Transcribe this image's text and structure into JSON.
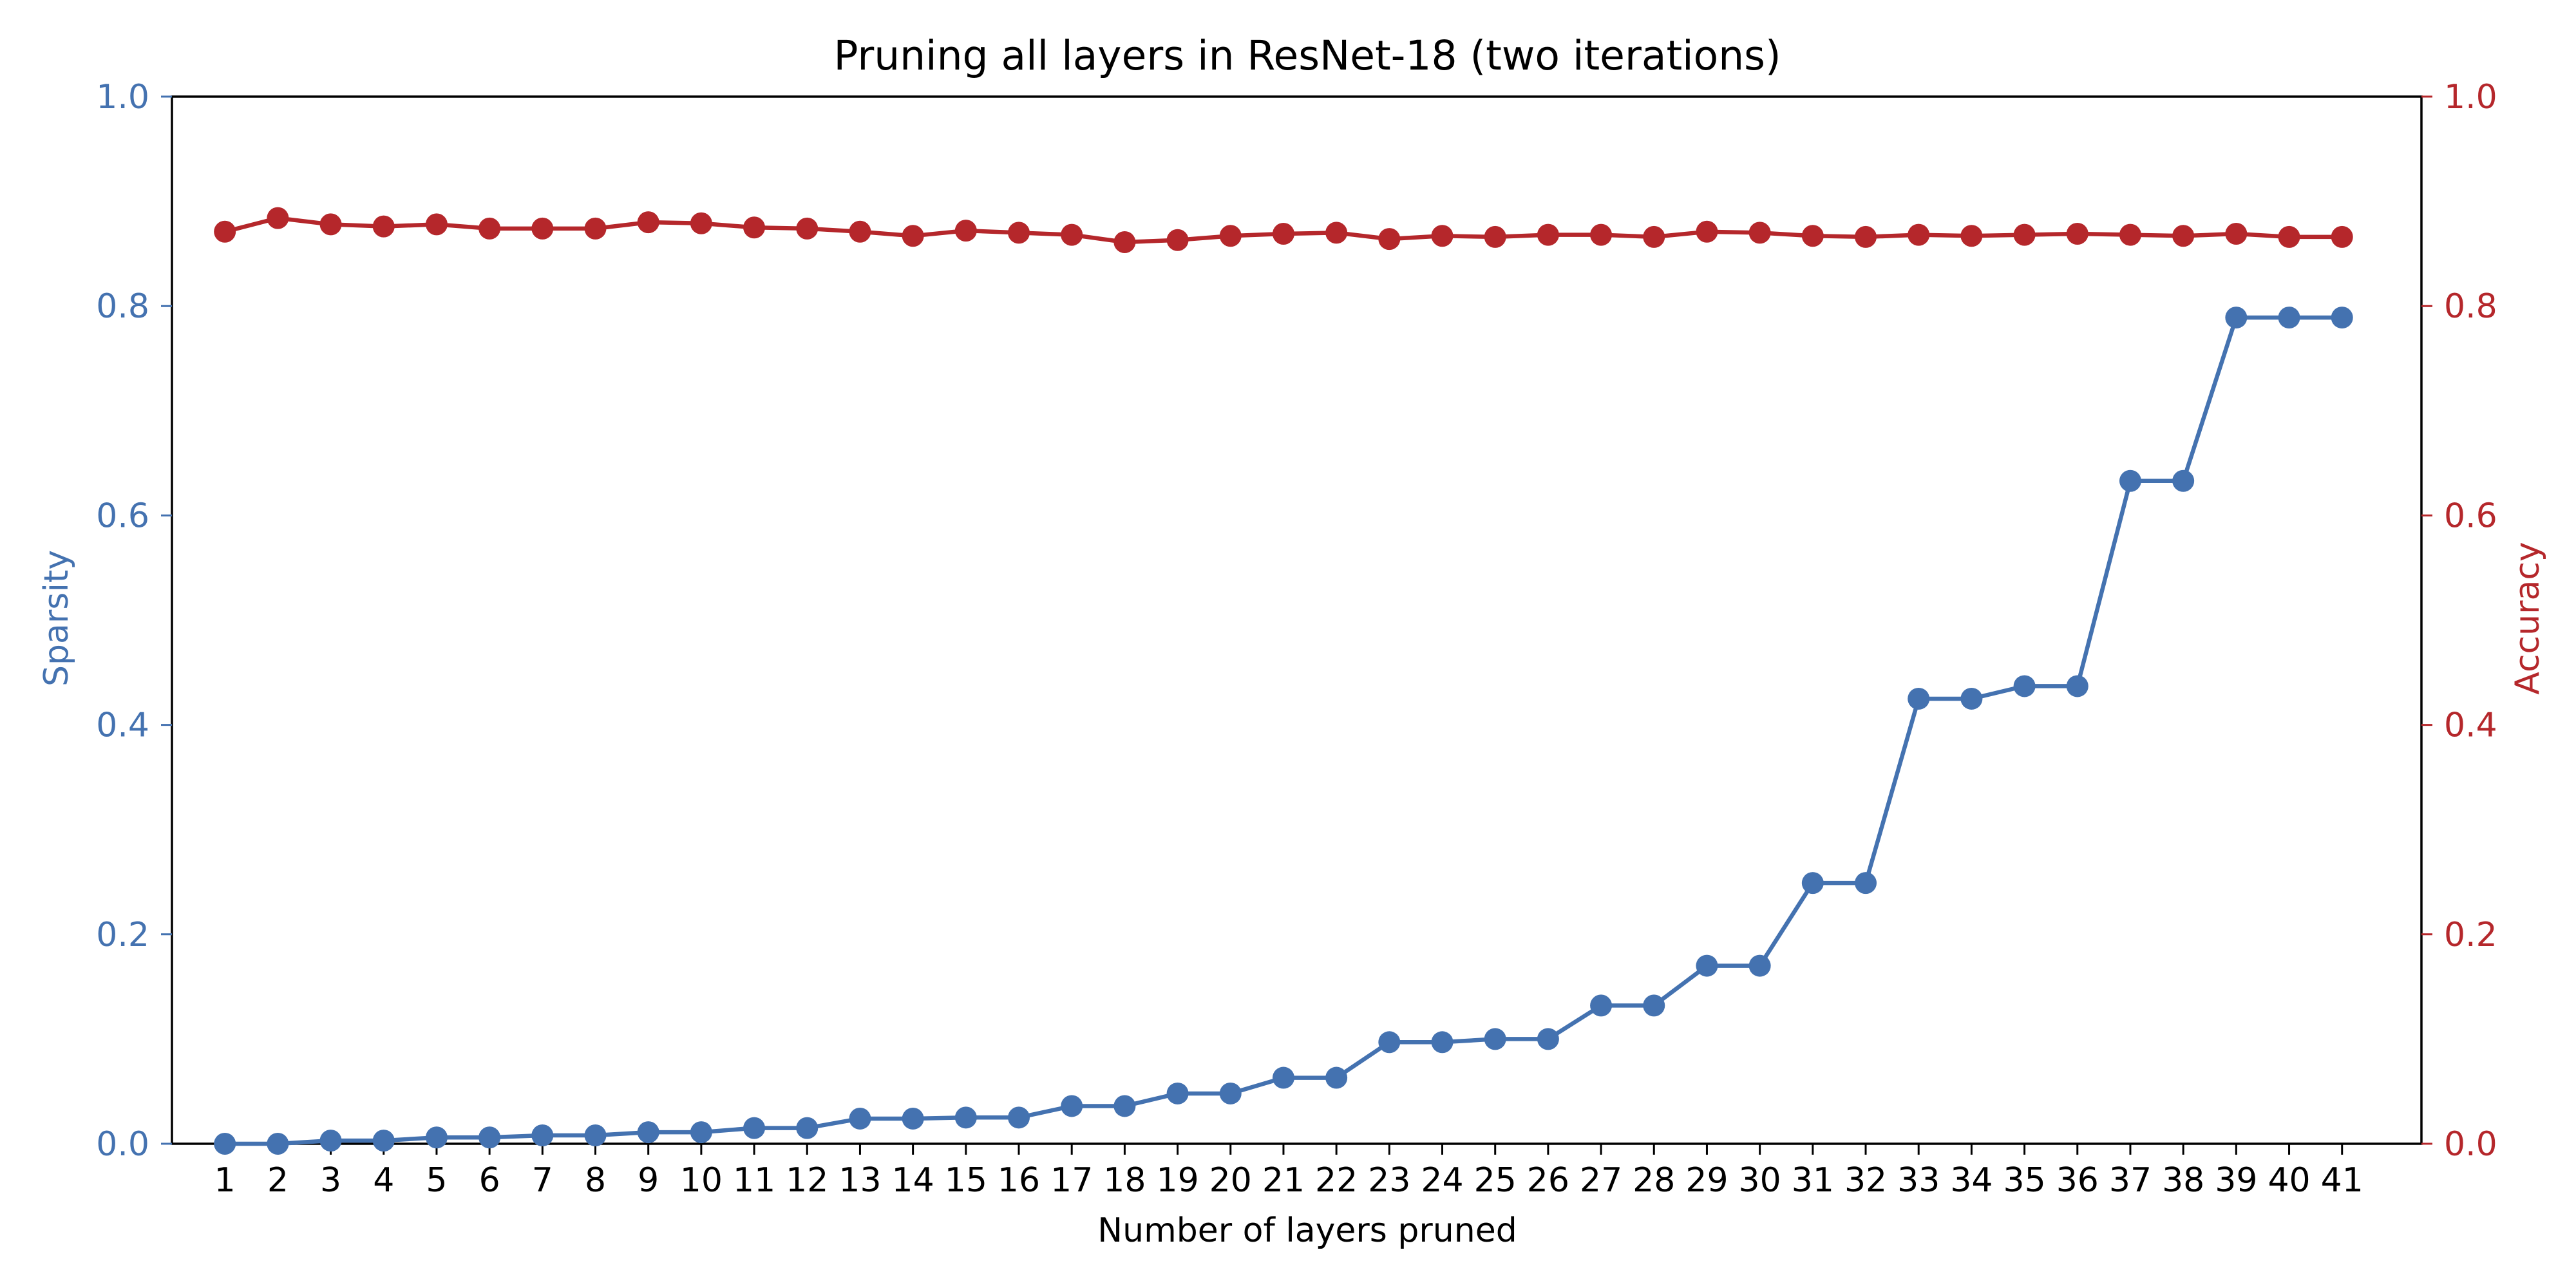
{
  "chart_data": {
    "type": "line",
    "title": "Pruning all layers in ResNet-18 (two iterations)",
    "xlabel": "Number of layers pruned",
    "ylabel_left": "Sparsity",
    "ylabel_right": "Accuracy",
    "x": [
      1,
      2,
      3,
      4,
      5,
      6,
      7,
      8,
      9,
      10,
      11,
      12,
      13,
      14,
      15,
      16,
      17,
      18,
      19,
      20,
      21,
      22,
      23,
      24,
      25,
      26,
      27,
      28,
      29,
      30,
      31,
      32,
      33,
      34,
      35,
      36,
      37,
      38,
      39,
      40,
      41
    ],
    "ylim_left": [
      0,
      1.0
    ],
    "ylim_right": [
      0,
      1.0
    ],
    "yticks_left": [
      "0.0",
      "0.2",
      "0.4",
      "0.6",
      "0.8",
      "1.0"
    ],
    "yticks_right": [
      "0.0",
      "0.2",
      "0.4",
      "0.6",
      "0.8",
      "1.0"
    ],
    "grid": false,
    "legend": "none",
    "series": [
      {
        "axis": "left",
        "color": "#4472b0",
        "marker": "circle",
        "values": [
          0.0,
          0.0,
          0.003,
          0.003,
          0.006,
          0.006,
          0.008,
          0.008,
          0.011,
          0.011,
          0.015,
          0.015,
          0.024,
          0.024,
          0.025,
          0.025,
          0.036,
          0.036,
          0.048,
          0.048,
          0.063,
          0.063,
          0.097,
          0.097,
          0.1,
          0.1,
          0.132,
          0.132,
          0.17,
          0.17,
          0.249,
          0.249,
          0.425,
          0.425,
          0.437,
          0.437,
          0.633,
          0.633,
          0.789,
          0.789,
          0.789
        ]
      },
      {
        "axis": "right",
        "color": "#b5272b",
        "marker": "circle",
        "values": [
          0.871,
          0.884,
          0.878,
          0.876,
          0.878,
          0.874,
          0.874,
          0.874,
          0.88,
          0.879,
          0.875,
          0.874,
          0.871,
          0.867,
          0.872,
          0.87,
          0.868,
          0.861,
          0.863,
          0.867,
          0.869,
          0.87,
          0.864,
          0.867,
          0.866,
          0.868,
          0.868,
          0.866,
          0.871,
          0.87,
          0.867,
          0.866,
          0.868,
          0.867,
          0.868,
          0.869,
          0.868,
          0.867,
          0.869,
          0.866,
          0.866
        ]
      }
    ]
  }
}
